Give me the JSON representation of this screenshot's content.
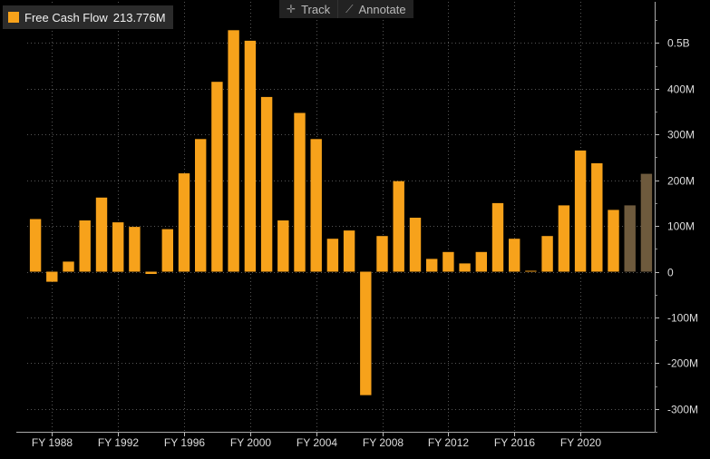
{
  "legend": {
    "label": "Free Cash Flow",
    "value": "213.776M",
    "color": "#f7a21b"
  },
  "toolbar": {
    "track_label": "Track",
    "track_icon": "crosshair-icon",
    "annotate_label": "Annotate",
    "annotate_icon": "pencil-icon"
  },
  "chart_data": {
    "type": "bar",
    "categories": [
      "FY 1987",
      "FY 1988",
      "FY 1989",
      "FY 1990",
      "FY 1991",
      "FY 1992",
      "FY 1993",
      "FY 1994",
      "FY 1995",
      "FY 1996",
      "FY 1997",
      "FY 1998",
      "FY 1999",
      "FY 2000",
      "FY 2001",
      "FY 2002",
      "FY 2003",
      "FY 2004",
      "FY 2005",
      "FY 2006",
      "FY 2007",
      "FY 2008",
      "FY 2009",
      "FY 2010",
      "FY 2011",
      "FY 2012",
      "FY 2013",
      "FY 2014",
      "FY 2015",
      "FY 2016",
      "FY 2017",
      "FY 2018",
      "FY 2019",
      "FY 2020",
      "FY 2021",
      "FY 2022",
      "FY 2023",
      "FY 2024"
    ],
    "values": [
      115,
      -22,
      22,
      112,
      162,
      108,
      98,
      -5,
      93,
      215,
      290,
      415,
      528,
      505,
      382,
      112,
      347,
      290,
      72,
      90,
      -270,
      78,
      198,
      118,
      28,
      43,
      18,
      43,
      150,
      72,
      2,
      78,
      145,
      265,
      237,
      135,
      145,
      214
    ],
    "estimate_from_index": 36,
    "colors": {
      "actual": "#f7a21b",
      "estimate": "#6e5a3d"
    },
    "ylim": [
      -350,
      590
    ],
    "ytick_values": [
      -300,
      -200,
      -100,
      0,
      100,
      200,
      300,
      400,
      500
    ],
    "ytick_labels": [
      "-300M",
      "-200M",
      "-100M",
      "0",
      "100M",
      "200M",
      "300M",
      "400M",
      "0.5B"
    ],
    "xtick_labels": [
      "FY 1988",
      "FY 1992",
      "FY 1996",
      "FY 2000",
      "FY 2004",
      "FY 2008",
      "FY 2012",
      "FY 2016",
      "FY 2020"
    ],
    "xtick_category_index": [
      1,
      5,
      9,
      13,
      17,
      21,
      25,
      29,
      33
    ],
    "grid": true,
    "legend_position": "top-left",
    "title": "",
    "xlabel": "",
    "ylabel": ""
  }
}
